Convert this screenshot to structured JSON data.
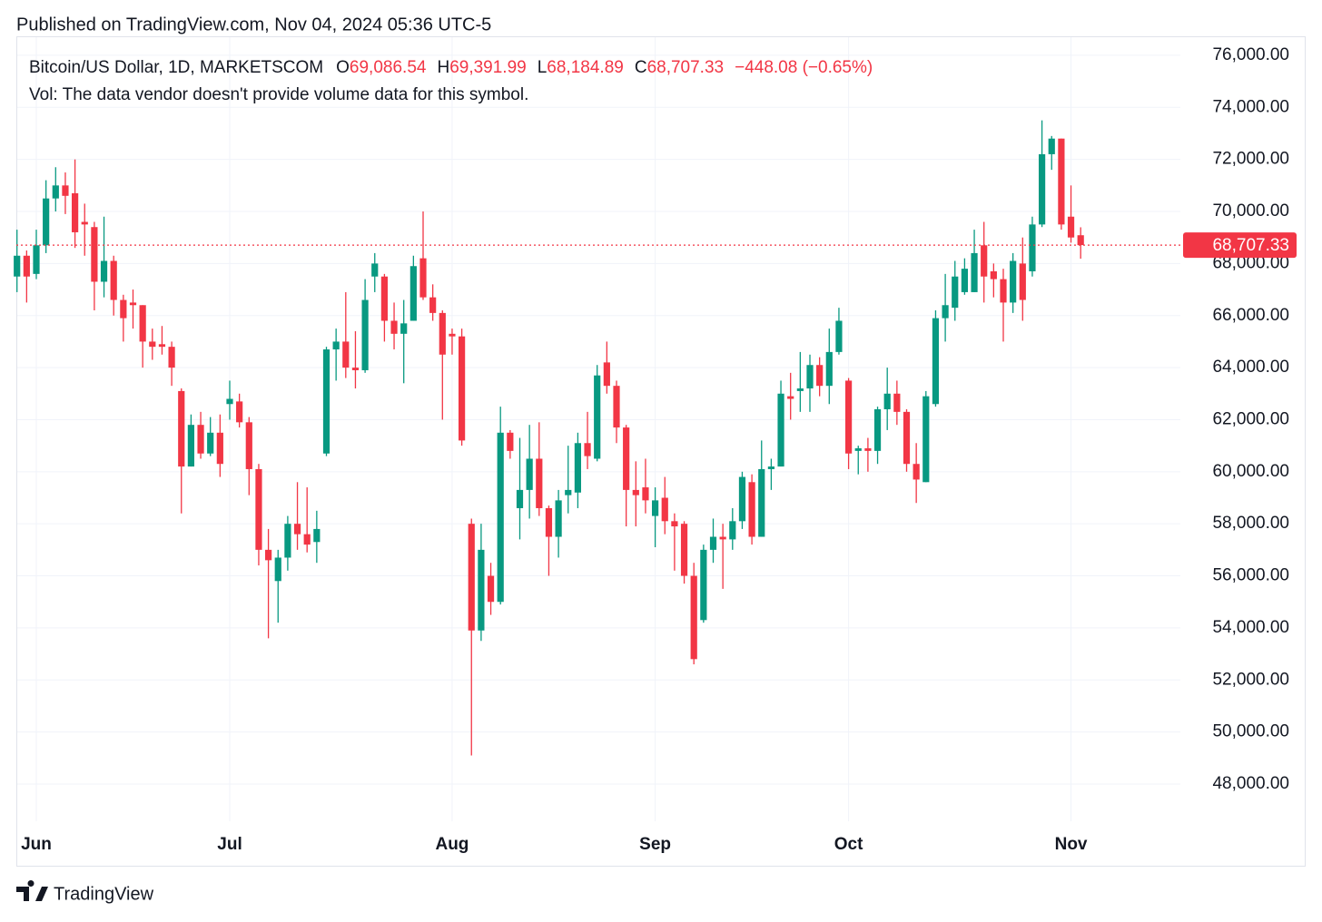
{
  "published": "Published on TradingView.com, Nov 04, 2024 05:36 UTC-5",
  "brand": "TradingView",
  "chart_data": {
    "type": "candlestick",
    "legend": {
      "symbol": "Bitcoin/US Dollar, 1D, MARKETSCOM",
      "items": [
        {
          "key": "O",
          "text": "69,086.54"
        },
        {
          "key": "H",
          "text": "69,391.99"
        },
        {
          "key": "L",
          "text": "68,184.89"
        },
        {
          "key": "C",
          "text": "68,707.33"
        }
      ],
      "change": "−448.08 (−0.65%)",
      "volume_note": "Vol: The data vendor doesn't provide volume data for this symbol."
    },
    "up_color": "#089981",
    "down_color": "#f23645",
    "grid": true,
    "categories": [
      null,
      null,
      "Jun",
      null,
      null,
      null,
      null,
      null,
      null,
      null,
      null,
      null,
      null,
      null,
      null,
      null,
      null,
      null,
      null,
      null,
      null,
      null,
      "Jul",
      null,
      null,
      null,
      null,
      null,
      null,
      null,
      null,
      null,
      null,
      null,
      null,
      null,
      null,
      null,
      null,
      null,
      null,
      null,
      null,
      null,
      null,
      "Aug",
      null,
      null,
      null,
      null,
      null,
      null,
      null,
      null,
      null,
      null,
      null,
      null,
      null,
      null,
      null,
      null,
      null,
      null,
      null,
      null,
      "Sep",
      null,
      null,
      null,
      null,
      null,
      null,
      null,
      null,
      null,
      null,
      null,
      null,
      null,
      null,
      null,
      null,
      null,
      null,
      null,
      "Oct",
      null,
      null,
      null,
      null,
      null,
      null,
      null,
      null,
      null,
      null,
      null,
      null,
      null,
      null,
      null,
      null,
      null,
      null,
      null,
      null,
      null,
      null,
      "Nov",
      null
    ],
    "open": [
      67500,
      68300,
      67600,
      68700,
      70500,
      71000,
      70700,
      69600,
      69400,
      67300,
      68100,
      66600,
      66500,
      66400,
      65000,
      64900,
      64800,
      63100,
      60200,
      61800,
      60700,
      61500,
      62600,
      62700,
      61900,
      60100,
      57000,
      55800,
      56700,
      58000,
      57600,
      57300,
      60700,
      64700,
      65000,
      64000,
      63900,
      67500,
      67500,
      65800,
      65300,
      65800,
      68200,
      66700,
      66100,
      65300,
      65200,
      58000,
      53900,
      56000,
      55000,
      61500,
      58600,
      59300,
      60500,
      58600,
      57500,
      59100,
      59200,
      61100,
      60500,
      64200,
      63300,
      61700,
      59300,
      59400,
      58300,
      59000,
      58100,
      58000,
      56000,
      54300,
      57000,
      57500,
      57400,
      58100,
      59600,
      57500,
      60100,
      60200,
      62900,
      63100,
      63200,
      64100,
      63300,
      64600,
      63500,
      60800,
      60900,
      60800,
      62400,
      63000,
      62300,
      60300,
      59600,
      62600,
      65900,
      66300,
      66900,
      66900,
      68700,
      67700,
      67400,
      66500,
      68000,
      67700,
      69500,
      72200,
      72800,
      69800,
      69086.54
    ],
    "high": [
      69300,
      68500,
      69300,
      71200,
      71700,
      71500,
      72000,
      70300,
      69600,
      69800,
      68300,
      66800,
      67000,
      66400,
      65500,
      65600,
      65000,
      63200,
      62200,
      62300,
      62100,
      62200,
      63500,
      63000,
      62100,
      60300,
      57800,
      57000,
      58300,
      59600,
      59400,
      58500,
      64800,
      65500,
      66900,
      65400,
      67400,
      68400,
      67600,
      66500,
      66600,
      68300,
      70000,
      67200,
      66200,
      65500,
      65500,
      58200,
      58000,
      56500,
      62500,
      61600,
      61300,
      61800,
      61900,
      58700,
      59300,
      61000,
      61500,
      62300,
      64100,
      65000,
      63500,
      61800,
      60400,
      60500,
      59400,
      59800,
      58400,
      58100,
      56500,
      57200,
      58200,
      58000,
      58600,
      60000,
      59900,
      61200,
      60500,
      63500,
      63800,
      64600,
      64500,
      64400,
      65500,
      66300,
      63600,
      61000,
      61300,
      62500,
      64000,
      63500,
      62400,
      61100,
      63100,
      66200,
      67600,
      68100,
      68200,
      69300,
      69600,
      68000,
      67800,
      68400,
      69000,
      69800,
      73500,
      72900,
      72800,
      71000,
      69391.99
    ],
    "low": [
      66900,
      66500,
      67400,
      68400,
      70000,
      69900,
      68600,
      68300,
      66200,
      66700,
      66000,
      65000,
      65500,
      64000,
      64300,
      64500,
      63300,
      58400,
      60200,
      60500,
      60600,
      59800,
      62000,
      61700,
      59100,
      56400,
      53600,
      54200,
      56200,
      57000,
      56900,
      56500,
      60600,
      63500,
      63600,
      63200,
      63800,
      66900,
      65000,
      64700,
      63400,
      65800,
      66600,
      65800,
      62000,
      64500,
      61000,
      49100,
      53500,
      54500,
      54900,
      60500,
      57400,
      58200,
      58300,
      56000,
      56700,
      58400,
      58600,
      60100,
      60400,
      63000,
      61100,
      57900,
      57900,
      58400,
      57100,
      57600,
      56200,
      55700,
      52600,
      54200,
      56500,
      55500,
      57000,
      57800,
      57200,
      57500,
      59300,
      60200,
      62000,
      62300,
      62300,
      62900,
      62600,
      64500,
      60100,
      59900,
      60000,
      60300,
      61600,
      61800,
      60000,
      58800,
      59600,
      62500,
      65000,
      65800,
      66800,
      66900,
      66500,
      66700,
      65000,
      66100,
      65800,
      67500,
      69400,
      71600,
      69300,
      68800,
      68184.89
    ],
    "close": [
      68300,
      67500,
      68700,
      70500,
      71000,
      70600,
      69200,
      69500,
      67300,
      68100,
      66600,
      65900,
      66400,
      65000,
      64800,
      64800,
      64000,
      60200,
      61800,
      60700,
      61500,
      60300,
      62800,
      61900,
      60100,
      57000,
      56600,
      56700,
      58000,
      57600,
      57200,
      57800,
      64700,
      65000,
      64000,
      63900,
      66600,
      68000,
      65800,
      65300,
      65700,
      67900,
      66700,
      66100,
      64500,
      65200,
      61200,
      53900,
      57000,
      55000,
      61500,
      60800,
      59300,
      60500,
      58600,
      57500,
      58900,
      59300,
      61100,
      60600,
      63700,
      63300,
      61700,
      59300,
      59100,
      58900,
      58900,
      58100,
      57900,
      56000,
      52800,
      57000,
      57500,
      57400,
      58100,
      59800,
      57500,
      60100,
      60200,
      63000,
      62800,
      63200,
      64100,
      63300,
      64600,
      65800,
      60700,
      60900,
      60800,
      62400,
      63000,
      62300,
      60300,
      59700,
      62900,
      65900,
      66400,
      67500,
      67800,
      68400,
      67500,
      67400,
      66500,
      68100,
      66600,
      69500,
      72200,
      72800,
      69500,
      69000,
      68707.33
    ],
    "last_price": {
      "value": 68707.33,
      "label": "68,707.33"
    },
    "ylim": [
      46570,
      76730
    ],
    "yticks": [
      {
        "value": 76000,
        "label": "76,000.00"
      },
      {
        "value": 74000,
        "label": "74,000.00"
      },
      {
        "value": 72000,
        "label": "72,000.00"
      },
      {
        "value": 70000,
        "label": "70,000.00"
      },
      {
        "value": 68000,
        "label": "68,000.00"
      },
      {
        "value": 66000,
        "label": "66,000.00"
      },
      {
        "value": 64000,
        "label": "64,000.00"
      },
      {
        "value": 62000,
        "label": "62,000.00"
      },
      {
        "value": 60000,
        "label": "60,000.00"
      },
      {
        "value": 58000,
        "label": "58,000.00"
      },
      {
        "value": 56000,
        "label": "56,000.00"
      },
      {
        "value": 54000,
        "label": "54,000.00"
      },
      {
        "value": 52000,
        "label": "52,000.00"
      },
      {
        "value": 50000,
        "label": "50,000.00"
      },
      {
        "value": 48000,
        "label": "48,000.00"
      }
    ]
  }
}
